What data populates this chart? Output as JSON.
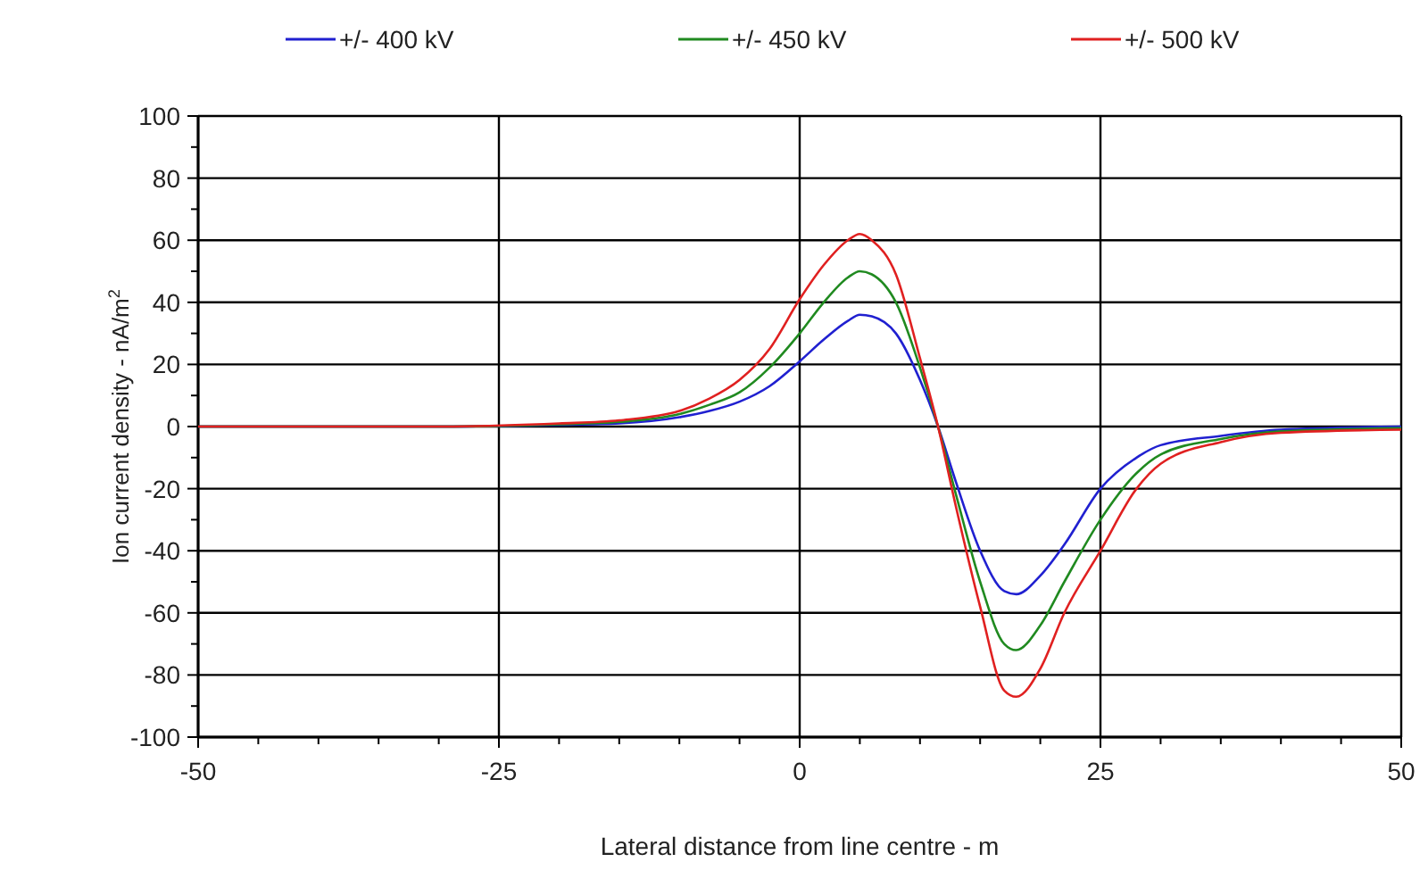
{
  "chart_data": {
    "type": "line",
    "xlabel": "Lateral distance from line centre - m",
    "ylabel": "Ion current density - nA/m$^{2}$",
    "x": [
      -50,
      -30,
      -20,
      -15,
      -10,
      -7.5,
      -5,
      -2.5,
      0,
      2,
      4,
      5,
      6,
      8,
      10,
      11.5,
      13,
      15,
      17,
      18,
      20,
      22,
      25,
      28,
      30,
      35,
      40,
      50
    ],
    "series": [
      {
        "name": "+/- 400 kV",
        "color": "#2020d0",
        "values": [
          0,
          0,
          0.5,
          1,
          3,
          5,
          8,
          13,
          21,
          28,
          34,
          36,
          35.5,
          30,
          15,
          0,
          -18,
          -40,
          -53,
          -54,
          -48,
          -38,
          -20,
          -10,
          -6,
          -3,
          -1,
          0
        ]
      },
      {
        "name": "+/- 450 kV",
        "color": "#208a20",
        "values": [
          0,
          0,
          0.7,
          1.5,
          4,
          7,
          11,
          19,
          30,
          40,
          48,
          50,
          49,
          40,
          19,
          0,
          -22,
          -50,
          -70,
          -72,
          -64,
          -50,
          -30,
          -15,
          -9,
          -4,
          -1.5,
          -0.5
        ]
      },
      {
        "name": "+/- 500 kV",
        "color": "#e02020",
        "values": [
          0,
          0,
          1,
          2,
          5,
          9,
          15,
          25,
          41,
          52,
          60,
          62,
          60,
          49,
          22,
          0,
          -26,
          -58,
          -85,
          -87,
          -78,
          -60,
          -40,
          -20,
          -12,
          -5,
          -2,
          -1
        ]
      }
    ],
    "xlim": [
      -50,
      50
    ],
    "xticks": [
      -50,
      -25,
      0,
      25,
      50
    ],
    "ylim": [
      -100,
      100
    ],
    "yticks": [
      -100,
      -80,
      -60,
      -40,
      -20,
      0,
      20,
      40,
      60,
      80,
      100
    ],
    "grid": true,
    "legend": "top",
    "marker": "none",
    "line_style": "solid"
  }
}
